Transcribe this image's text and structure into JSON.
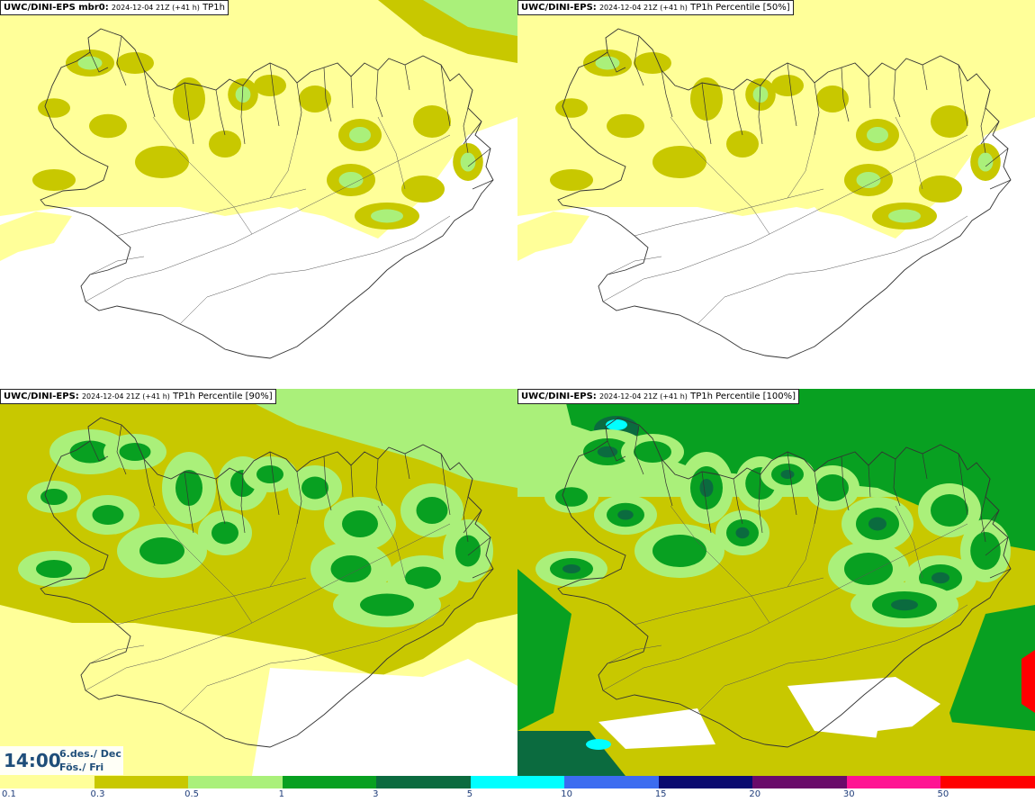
{
  "panels": [
    {
      "id": "p0",
      "model": "UWC/DINI-EPS mbr0:",
      "run": "2024-12-04 21Z (+41 h)",
      "param": "TP1h",
      "intensity": 0
    },
    {
      "id": "p1",
      "model": "UWC/DINI-EPS:",
      "run": "2024-12-04 21Z (+41 h)",
      "param": "TP1h Percentile [50%]",
      "intensity": 0
    },
    {
      "id": "p2",
      "model": "UWC/DINI-EPS:",
      "run": "2024-12-04 21Z (+41 h)",
      "param": "TP1h Percentile [90%]",
      "intensity": 1
    },
    {
      "id": "p3",
      "model": "UWC/DINI-EPS:",
      "run": "2024-12-04 21Z (+41 h)",
      "param": "TP1h Percentile [100%]",
      "intensity": 2
    }
  ],
  "valid_time": {
    "time": "14:00",
    "date_line1": "6.des./ Dec",
    "date_line2": "Fös./ Fri"
  },
  "colorbar": {
    "labels": [
      "0.1",
      "0.3",
      "0.5",
      "1",
      "3",
      "5",
      "10",
      "15",
      "20",
      "30",
      "50"
    ],
    "colors": [
      "#ffff99",
      "#c8c800",
      "#aaf07a",
      "#08a021",
      "#0b6b3f",
      "#00ffff",
      "#3c6cf0",
      "#0a0a70",
      "#6a0a6a",
      "#ff1493",
      "#ff0000"
    ]
  }
}
